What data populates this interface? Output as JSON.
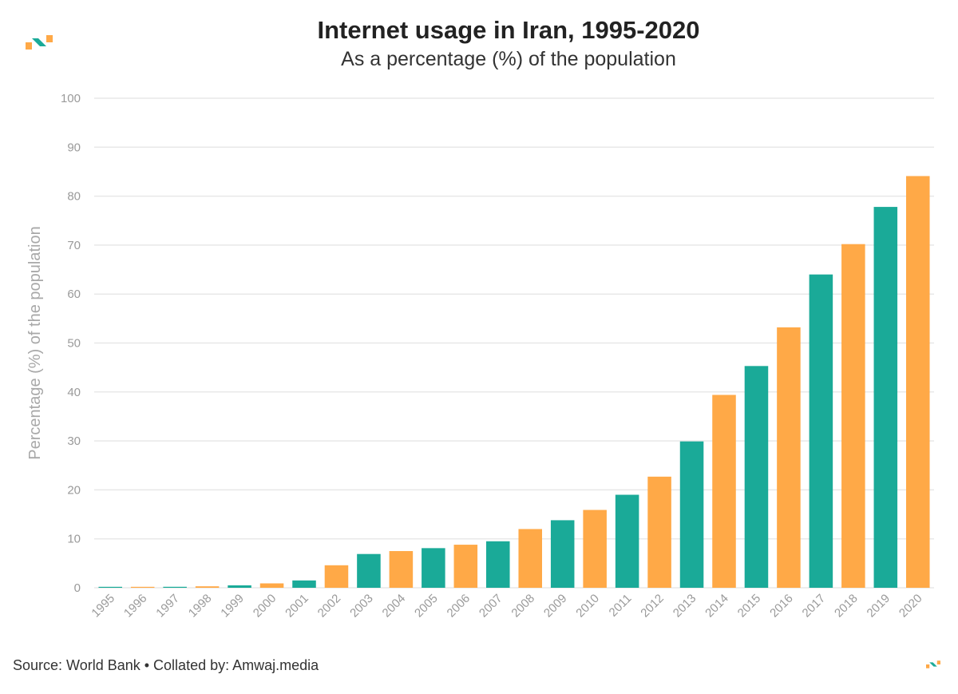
{
  "header": {
    "title": "Internet usage in Iran, 1995-2020",
    "subtitle": "As a percentage (%) of the population"
  },
  "footer": {
    "source": "Source: World Bank • Collated by: Amwaj.media"
  },
  "colors": {
    "teal": "#1aaa98",
    "orange": "#ffa947",
    "grid": "#e8e8e8"
  },
  "chart_data": {
    "type": "bar",
    "title": "Internet usage in Iran, 1995-2020",
    "subtitle": "As a percentage (%) of the population",
    "xlabel": "",
    "ylabel": "Percentage (%) of the population",
    "ylim": [
      0,
      100
    ],
    "yticks": [
      0,
      10,
      20,
      30,
      40,
      50,
      60,
      70,
      80,
      90,
      100
    ],
    "grid": true,
    "categories": [
      "1995",
      "1996",
      "1997",
      "1998",
      "1999",
      "2000",
      "2001",
      "2002",
      "2003",
      "2004",
      "2005",
      "2006",
      "2007",
      "2008",
      "2009",
      "2010",
      "2011",
      "2012",
      "2013",
      "2014",
      "2015",
      "2016",
      "2017",
      "2018",
      "2019",
      "2020"
    ],
    "values": [
      0.05,
      0.06,
      0.2,
      0.3,
      0.5,
      0.9,
      1.5,
      4.6,
      6.9,
      7.5,
      8.1,
      8.8,
      9.5,
      12.0,
      13.8,
      15.9,
      19.0,
      22.7,
      29.9,
      39.4,
      45.3,
      53.2,
      64.0,
      70.2,
      77.8,
      84.1
    ],
    "bar_colors": [
      "teal",
      "orange",
      "teal",
      "orange",
      "teal",
      "orange",
      "teal",
      "orange",
      "teal",
      "orange",
      "teal",
      "orange",
      "teal",
      "orange",
      "teal",
      "orange",
      "teal",
      "orange",
      "teal",
      "orange",
      "teal",
      "orange",
      "teal",
      "orange",
      "teal",
      "orange"
    ]
  }
}
